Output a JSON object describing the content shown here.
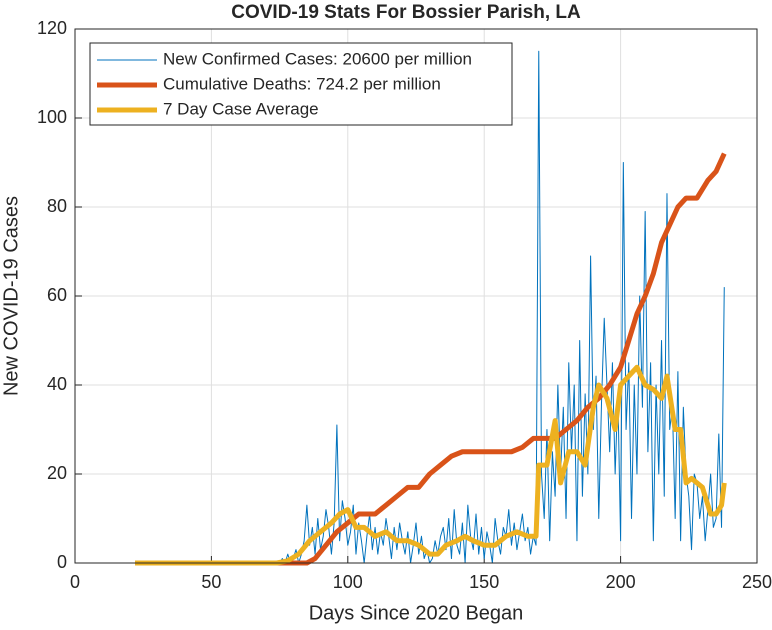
{
  "chart_data": {
    "type": "line",
    "title": "COVID-19 Stats For Bossier Parish, LA",
    "xlabel": "Days Since 2020 Began",
    "ylabel": "New COVID-19 Cases",
    "xlim": [
      0,
      250
    ],
    "xticks": [
      0,
      50,
      100,
      150,
      200,
      250
    ],
    "ylim": [
      0,
      120
    ],
    "yticks": [
      0,
      20,
      40,
      60,
      80,
      100,
      120
    ],
    "grid": true,
    "legend": "upper left",
    "series": [
      {
        "name": "New Confirmed Cases: 20600 per million",
        "color": "#0072BD",
        "x": [
          22,
          74,
          75,
          76,
          77,
          78,
          79,
          80,
          81,
          82,
          83,
          84,
          85,
          86,
          87,
          88,
          89,
          90,
          91,
          92,
          93,
          94,
          95,
          96,
          97,
          98,
          99,
          100,
          101,
          102,
          103,
          104,
          105,
          106,
          107,
          108,
          109,
          110,
          111,
          112,
          113,
          114,
          115,
          116,
          117,
          118,
          119,
          120,
          121,
          122,
          123,
          124,
          125,
          126,
          127,
          128,
          129,
          130,
          131,
          132,
          133,
          134,
          135,
          136,
          137,
          138,
          139,
          140,
          141,
          142,
          143,
          144,
          145,
          146,
          147,
          148,
          149,
          150,
          151,
          152,
          153,
          154,
          155,
          156,
          157,
          158,
          159,
          160,
          161,
          162,
          163,
          164,
          165,
          166,
          167,
          168,
          169,
          170,
          171,
          172,
          173,
          174,
          175,
          176,
          177,
          178,
          179,
          180,
          181,
          182,
          183,
          184,
          185,
          186,
          187,
          188,
          189,
          190,
          191,
          192,
          193,
          194,
          195,
          196,
          197,
          198,
          199,
          200,
          201,
          202,
          203,
          204,
          205,
          206,
          207,
          208,
          209,
          210,
          211,
          212,
          213,
          214,
          215,
          216,
          217,
          218,
          219,
          220,
          221,
          222,
          223,
          224,
          225,
          226,
          227,
          228,
          229,
          230,
          231,
          232,
          233,
          234,
          235,
          236,
          237,
          238
        ],
        "values": [
          0,
          0,
          0,
          1,
          0,
          2,
          0,
          1,
          3,
          0,
          2,
          5,
          13,
          4,
          8,
          2,
          10,
          3,
          6,
          12,
          8,
          2,
          9,
          31,
          5,
          14,
          10,
          4,
          7,
          13,
          2,
          9,
          5,
          0,
          6,
          11,
          3,
          8,
          2,
          7,
          4,
          10,
          6,
          1,
          8,
          3,
          9,
          5,
          2,
          7,
          0,
          4,
          9,
          2,
          6,
          1,
          3,
          0,
          1,
          5,
          2,
          6,
          8,
          3,
          10,
          1,
          12,
          4,
          2,
          9,
          0,
          13,
          6,
          3,
          11,
          2,
          8,
          1,
          7,
          4,
          0,
          10,
          5,
          2,
          8,
          6,
          12,
          4,
          9,
          3,
          7,
          11,
          5,
          8,
          2,
          6,
          4,
          115,
          20,
          10,
          30,
          5,
          25,
          15,
          40,
          20,
          35,
          10,
          45,
          25,
          40,
          5,
          50,
          15,
          38,
          20,
          69,
          30,
          42,
          10,
          36,
          55,
          40,
          25,
          45,
          20,
          38,
          5,
          90,
          30,
          45,
          10,
          40,
          20,
          60,
          35,
          79,
          25,
          45,
          5,
          40,
          20,
          50,
          15,
          83,
          30,
          35,
          10,
          43,
          5,
          35,
          20,
          15,
          3,
          20,
          18,
          10,
          15,
          5,
          12,
          20,
          8,
          10,
          29,
          8,
          62
        ]
      },
      {
        "name": "Cumulative Deaths: 724.2 per million",
        "color": "#D95319",
        "x": [
          22,
          85,
          88,
          92,
          96,
          100,
          104,
          110,
          114,
          118,
          122,
          126,
          130,
          134,
          138,
          142,
          146,
          160,
          164,
          168,
          172,
          176,
          180,
          184,
          188,
          192,
          196,
          200,
          203,
          206,
          209,
          212,
          215,
          218,
          221,
          224,
          228,
          232,
          235,
          238
        ],
        "values": [
          0,
          0,
          1,
          4,
          7,
          9,
          11,
          11,
          13,
          15,
          17,
          17,
          20,
          22,
          24,
          25,
          25,
          25,
          26,
          28,
          28,
          28,
          30,
          32,
          35,
          37,
          40,
          44,
          50,
          56,
          60,
          65,
          72,
          76,
          80,
          82,
          82,
          86,
          88,
          92
        ]
      },
      {
        "name": "7 Day Case Average",
        "color": "#EDB120",
        "x": [
          22,
          74,
          78,
          82,
          86,
          90,
          94,
          97,
          100,
          103,
          106,
          110,
          114,
          118,
          122,
          126,
          130,
          133,
          136,
          140,
          143,
          146,
          150,
          154,
          158,
          162,
          166,
          169,
          170,
          173,
          176,
          178,
          181,
          184,
          187,
          190,
          192,
          195,
          198,
          200,
          203,
          206,
          209,
          212,
          215,
          217,
          220,
          222,
          224,
          226,
          230,
          233,
          235,
          237,
          238
        ],
        "values": [
          0,
          0,
          0.5,
          2,
          5,
          7,
          9,
          11,
          12,
          8,
          8,
          6,
          7,
          5,
          5,
          4,
          2,
          2,
          4,
          5,
          6,
          5,
          4,
          4,
          6,
          7,
          6,
          6,
          22,
          22,
          32,
          18,
          25,
          25,
          22,
          35,
          40,
          37,
          30,
          40,
          42,
          44,
          40,
          39,
          37,
          42,
          30,
          30,
          18,
          19,
          17,
          11,
          11,
          13,
          18
        ]
      }
    ]
  }
}
